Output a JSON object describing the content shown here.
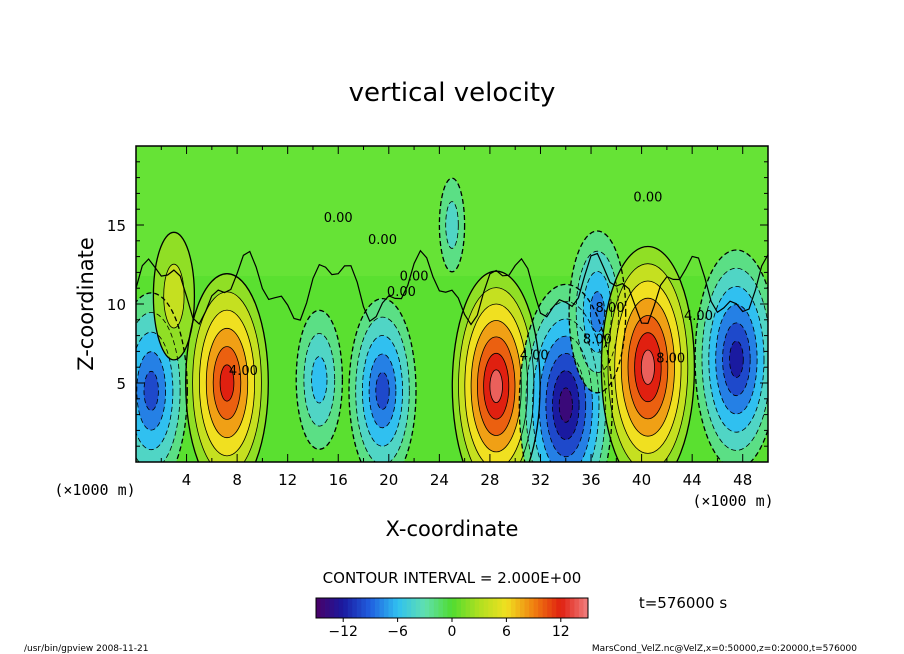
{
  "chart_data": {
    "type": "heatmap",
    "title": "vertical velocity",
    "xlabel": "X-coordinate",
    "ylabel": "Z-coordinate",
    "x_unit": "(×1000 m)",
    "y_unit": "(×1000 m)",
    "xlim": [
      0,
      50
    ],
    "ylim": [
      0,
      20
    ],
    "x_ticks": [
      4,
      8,
      12,
      16,
      20,
      24,
      28,
      32,
      36,
      40,
      44,
      48
    ],
    "y_ticks": [
      5,
      10,
      15
    ],
    "contour_interval_label": "CONTOUR INTERVAL = 2.000E+00",
    "contour_labels": [
      "0.00",
      "0.00",
      "0.00",
      "0.00",
      "4.00",
      "4.00",
      "4.00",
      "8.00",
      "8.00",
      "8.00",
      "0.00"
    ],
    "colorbar": {
      "range": [
        -15,
        15
      ],
      "ticks": [
        -12,
        -6,
        0,
        6,
        12
      ],
      "colors": [
        "#4a0066",
        "#1a1aa0",
        "#2060e0",
        "#30c0f0",
        "#60e0b0",
        "#50dc30",
        "#b0e020",
        "#f0e020",
        "#f08010",
        "#e02010",
        "#f08080"
      ]
    },
    "features": [
      {
        "x": 1.2,
        "z": 4.5,
        "w": -10
      },
      {
        "x": 3.0,
        "z": 10.5,
        "w": 4
      },
      {
        "x": 7.2,
        "z": 5.0,
        "w": 12
      },
      {
        "x": 14.5,
        "z": 5.2,
        "w": -5
      },
      {
        "x": 19.5,
        "z": 4.5,
        "w": -9
      },
      {
        "x": 28.5,
        "z": 4.8,
        "w": 13
      },
      {
        "x": 34.0,
        "z": 3.6,
        "w": -14
      },
      {
        "x": 36.5,
        "z": 9.5,
        "w": -7
      },
      {
        "x": 40.5,
        "z": 6.0,
        "w": 14
      },
      {
        "x": 47.5,
        "z": 6.5,
        "w": -12
      },
      {
        "x": 25.0,
        "z": 15.0,
        "w": -1
      }
    ]
  },
  "time_label": "t=576000 s",
  "footer": {
    "left": "/usr/bin/gpview   2008-11-21",
    "right": "MarsCond_VelZ.nc@VelZ,x=0:50000,z=0:20000,t=576000"
  }
}
